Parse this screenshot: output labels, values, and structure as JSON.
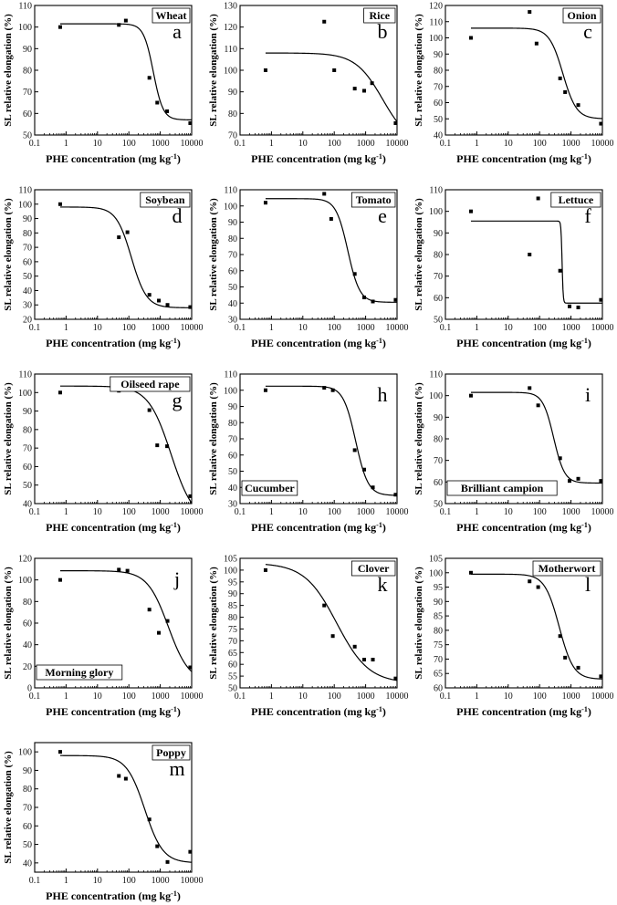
{
  "figure": {
    "x_label_main": "PHE concentration (mg kg",
    "x_label_sup": "-1",
    "x_label_close": ")",
    "y_label": "SL relative elongation (%)"
  },
  "chart_data": [
    {
      "type": "scatter",
      "fit": "sigmoid",
      "title": "Wheat",
      "letter": "a",
      "label_pos": "top-right",
      "x_ticks": [
        0.1,
        1,
        10,
        100,
        1000,
        10000
      ],
      "x_tick_labels": [
        "0.1",
        "1",
        "10",
        "100",
        "1000",
        "10000"
      ],
      "ylim": [
        50,
        110
      ],
      "y_ticks": [
        50,
        60,
        70,
        80,
        90,
        100,
        110
      ],
      "points": [
        [
          0.65,
          100
        ],
        [
          48,
          101
        ],
        [
          80,
          103
        ],
        [
          450,
          76.5
        ],
        [
          800,
          65
        ],
        [
          1650,
          61
        ],
        [
          9000,
          55.5
        ]
      ],
      "fit_params": {
        "top": 101.5,
        "bottom": 57,
        "ec50": 600,
        "slope": 2.8
      }
    },
    {
      "type": "scatter",
      "fit": "sigmoid",
      "title": "Rice",
      "letter": "b",
      "label_pos": "top-right",
      "x_ticks": [
        0.1,
        1,
        10,
        100,
        1000,
        10000
      ],
      "x_tick_labels": [
        "0.1",
        "1",
        "10",
        "100",
        "1000",
        "10000"
      ],
      "ylim": [
        70,
        130
      ],
      "y_ticks": [
        70,
        80,
        90,
        100,
        110,
        120,
        130
      ],
      "points": [
        [
          0.65,
          100
        ],
        [
          48,
          122.5
        ],
        [
          100,
          100
        ],
        [
          450,
          91.5
        ],
        [
          900,
          90.5
        ],
        [
          1600,
          94
        ],
        [
          9000,
          75.5
        ]
      ],
      "fit_params": {
        "top": 108,
        "bottom": 65,
        "ec50": 3500,
        "slope": 1.0
      }
    },
    {
      "type": "scatter",
      "fit": "sigmoid",
      "title": "Onion",
      "letter": "c",
      "label_pos": "top-right",
      "x_ticks": [
        0.1,
        1,
        10,
        100,
        1000,
        10000
      ],
      "x_tick_labels": [
        "0.1",
        "1",
        "10",
        "100",
        "1000",
        "10000"
      ],
      "ylim": [
        40,
        120
      ],
      "y_ticks": [
        40,
        50,
        60,
        70,
        80,
        90,
        100,
        110,
        120
      ],
      "points": [
        [
          0.65,
          100
        ],
        [
          48,
          116
        ],
        [
          80,
          96.5
        ],
        [
          450,
          75
        ],
        [
          650,
          66.5
        ],
        [
          1700,
          58.5
        ],
        [
          9000,
          47
        ]
      ],
      "fit_params": {
        "top": 106,
        "bottom": 50,
        "ec50": 550,
        "slope": 2.0
      }
    },
    {
      "type": "scatter",
      "fit": "sigmoid",
      "title": "Soybean",
      "letter": "d",
      "label_pos": "top-right",
      "x_ticks": [
        0.1,
        1,
        10,
        100,
        1000,
        10000
      ],
      "x_tick_labels": [
        "0.1",
        "1",
        "10",
        "100",
        "1000",
        "10000"
      ],
      "ylim": [
        20,
        110
      ],
      "y_ticks": [
        20,
        30,
        40,
        50,
        60,
        70,
        80,
        90,
        100,
        110
      ],
      "points": [
        [
          0.65,
          100
        ],
        [
          48,
          77
        ],
        [
          90,
          80.5
        ],
        [
          450,
          37
        ],
        [
          900,
          33
        ],
        [
          1700,
          30
        ],
        [
          9000,
          28.5
        ]
      ],
      "fit_params": {
        "top": 98,
        "bottom": 28,
        "ec50": 120,
        "slope": 1.8
      }
    },
    {
      "type": "scatter",
      "fit": "sigmoid",
      "title": "Tomato",
      "letter": "e",
      "label_pos": "top-right",
      "x_ticks": [
        0.1,
        1,
        10,
        100,
        1000,
        10000
      ],
      "x_tick_labels": [
        "0.1",
        "1",
        "10",
        "100",
        "1000",
        "10000"
      ],
      "ylim": [
        30,
        110
      ],
      "y_ticks": [
        30,
        40,
        50,
        60,
        70,
        80,
        90,
        100,
        110
      ],
      "points": [
        [
          0.65,
          102
        ],
        [
          48,
          107.5
        ],
        [
          80,
          92
        ],
        [
          450,
          58
        ],
        [
          900,
          43.5
        ],
        [
          1700,
          41
        ],
        [
          9000,
          42
        ]
      ],
      "fit_params": {
        "top": 104.5,
        "bottom": 40.5,
        "ec50": 270,
        "slope": 2.3
      }
    },
    {
      "type": "scatter",
      "fit": "sigmoid",
      "title": "Lettuce",
      "letter": "f",
      "label_pos": "top-right",
      "x_ticks": [
        0.1,
        1,
        10,
        100,
        1000,
        10000
      ],
      "x_tick_labels": [
        "0.1",
        "1",
        "10",
        "100",
        "1000",
        "10000"
      ],
      "ylim": [
        50,
        110
      ],
      "y_ticks": [
        50,
        60,
        70,
        80,
        90,
        100,
        110
      ],
      "points": [
        [
          0.65,
          100
        ],
        [
          48,
          80
        ],
        [
          90,
          106
        ],
        [
          450,
          72.5
        ],
        [
          900,
          56
        ],
        [
          1700,
          55.5
        ],
        [
          9000,
          59
        ]
      ],
      "fit_params": {
        "top": 95.5,
        "bottom": 57.5,
        "ec50": 520,
        "slope": 25
      }
    },
    {
      "type": "scatter",
      "fit": "sigmoid",
      "title": "Oilseed rape",
      "letter": "g",
      "label_pos": "top-right",
      "x_ticks": [
        0.1,
        1,
        10,
        100,
        1000,
        10000
      ],
      "x_tick_labels": [
        "0.1",
        "1",
        "10",
        "100",
        "1000",
        "10000"
      ],
      "ylim": [
        40,
        110
      ],
      "y_ticks": [
        40,
        50,
        60,
        70,
        80,
        90,
        100,
        110
      ],
      "points": [
        [
          0.65,
          100
        ],
        [
          48,
          101
        ],
        [
          65,
          106
        ],
        [
          450,
          90.5
        ],
        [
          800,
          71.5
        ],
        [
          1650,
          71
        ],
        [
          9000,
          44
        ]
      ],
      "fit_params": {
        "top": 103.5,
        "bottom": 30,
        "ec50": 2200,
        "slope": 1.2
      }
    },
    {
      "type": "scatter",
      "fit": "sigmoid",
      "title": "Cucumber",
      "letter": "h",
      "label_pos": "bottom-left",
      "x_ticks": [
        0.1,
        1,
        10,
        100,
        1000,
        10000
      ],
      "x_tick_labels": [
        "0.1",
        "1",
        "10",
        "100",
        "1000",
        "10000"
      ],
      "ylim": [
        30,
        110
      ],
      "y_ticks": [
        30,
        40,
        50,
        60,
        70,
        80,
        90,
        100,
        110
      ],
      "points": [
        [
          0.65,
          100
        ],
        [
          48,
          101.5
        ],
        [
          90,
          100
        ],
        [
          450,
          63
        ],
        [
          900,
          51
        ],
        [
          1700,
          40
        ],
        [
          9000,
          35.5
        ]
      ],
      "fit_params": {
        "top": 102.5,
        "bottom": 35,
        "ec50": 480,
        "slope": 2.2
      }
    },
    {
      "type": "scatter",
      "fit": "sigmoid",
      "title": "Brilliant campion",
      "letter": "i",
      "label_pos": "bottom-left",
      "x_ticks": [
        0.1,
        1,
        10,
        100,
        1000,
        10000
      ],
      "x_tick_labels": [
        "0.1",
        "1",
        "10",
        "100",
        "1000",
        "10000"
      ],
      "ylim": [
        50,
        110
      ],
      "y_ticks": [
        50,
        60,
        70,
        80,
        90,
        100,
        110
      ],
      "points": [
        [
          0.65,
          100
        ],
        [
          48,
          103.5
        ],
        [
          90,
          95.5
        ],
        [
          450,
          71
        ],
        [
          900,
          60.5
        ],
        [
          1700,
          61.5
        ],
        [
          9000,
          60.5
        ]
      ],
      "fit_params": {
        "top": 101.5,
        "bottom": 59.5,
        "ec50": 280,
        "slope": 2.5
      }
    },
    {
      "type": "scatter",
      "fit": "sigmoid",
      "title": "Morning glory",
      "letter": "j",
      "label_pos": "bottom-left",
      "x_ticks": [
        0.1,
        1,
        10,
        100,
        1000,
        10000
      ],
      "x_tick_labels": [
        "0.1",
        "1",
        "10",
        "100",
        "1000",
        "10000"
      ],
      "ylim": [
        0,
        120
      ],
      "y_ticks": [
        0,
        20,
        40,
        60,
        80,
        100,
        120
      ],
      "points": [
        [
          0.65,
          100
        ],
        [
          48,
          109.5
        ],
        [
          90,
          108.5
        ],
        [
          450,
          72.5
        ],
        [
          900,
          51
        ],
        [
          1700,
          62
        ],
        [
          9000,
          19
        ]
      ],
      "fit_params": {
        "top": 108.5,
        "bottom": 5,
        "ec50": 1800,
        "slope": 1.3
      }
    },
    {
      "type": "scatter",
      "fit": "sigmoid",
      "title": "Clover",
      "letter": "k",
      "label_pos": "top-right",
      "x_ticks": [
        0.1,
        1,
        10,
        100,
        1000,
        10000
      ],
      "x_tick_labels": [
        "0.1",
        "1",
        "10",
        "100",
        "1000",
        "10000"
      ],
      "ylim": [
        50,
        105
      ],
      "y_ticks": [
        50,
        55,
        60,
        65,
        70,
        75,
        80,
        85,
        90,
        95,
        100,
        105
      ],
      "points": [
        [
          0.65,
          100
        ],
        [
          48,
          85
        ],
        [
          90,
          72
        ],
        [
          450,
          67.5
        ],
        [
          900,
          62
        ],
        [
          1700,
          62
        ],
        [
          9000,
          54
        ]
      ],
      "fit_params": {
        "top": 103,
        "bottom": 52,
        "ec50": 120,
        "slope": 0.85
      }
    },
    {
      "type": "scatter",
      "fit": "sigmoid",
      "title": "Motherwort",
      "letter": "l",
      "label_pos": "top-right",
      "x_ticks": [
        0.1,
        1,
        10,
        100,
        1000,
        10000
      ],
      "x_tick_labels": [
        "0.1",
        "1",
        "10",
        "100",
        "1000",
        "10000"
      ],
      "ylim": [
        60,
        105
      ],
      "y_ticks": [
        60,
        65,
        70,
        75,
        80,
        85,
        90,
        95,
        100,
        105
      ],
      "points": [
        [
          0.65,
          100
        ],
        [
          48,
          97
        ],
        [
          90,
          95
        ],
        [
          450,
          78
        ],
        [
          650,
          70.5
        ],
        [
          1700,
          67
        ],
        [
          9000,
          64
        ]
      ],
      "fit_params": {
        "top": 99.5,
        "bottom": 63,
        "ec50": 420,
        "slope": 1.9
      }
    },
    {
      "type": "scatter",
      "fit": "sigmoid",
      "title": "Poppy",
      "letter": "m",
      "label_pos": "top-right",
      "x_ticks": [
        0.1,
        1,
        10,
        100,
        1000,
        10000
      ],
      "x_tick_labels": [
        "0.1",
        "1",
        "10",
        "100",
        "1000",
        "10000"
      ],
      "ylim": [
        35,
        105
      ],
      "y_ticks": [
        40,
        50,
        60,
        70,
        80,
        90,
        100
      ],
      "points": [
        [
          0.65,
          100
        ],
        [
          48,
          87
        ],
        [
          80,
          85.5
        ],
        [
          450,
          63.5
        ],
        [
          800,
          49
        ],
        [
          1700,
          40.5
        ],
        [
          9000,
          46
        ]
      ],
      "fit_params": {
        "top": 98,
        "bottom": 40,
        "ec50": 320,
        "slope": 1.5
      }
    }
  ]
}
